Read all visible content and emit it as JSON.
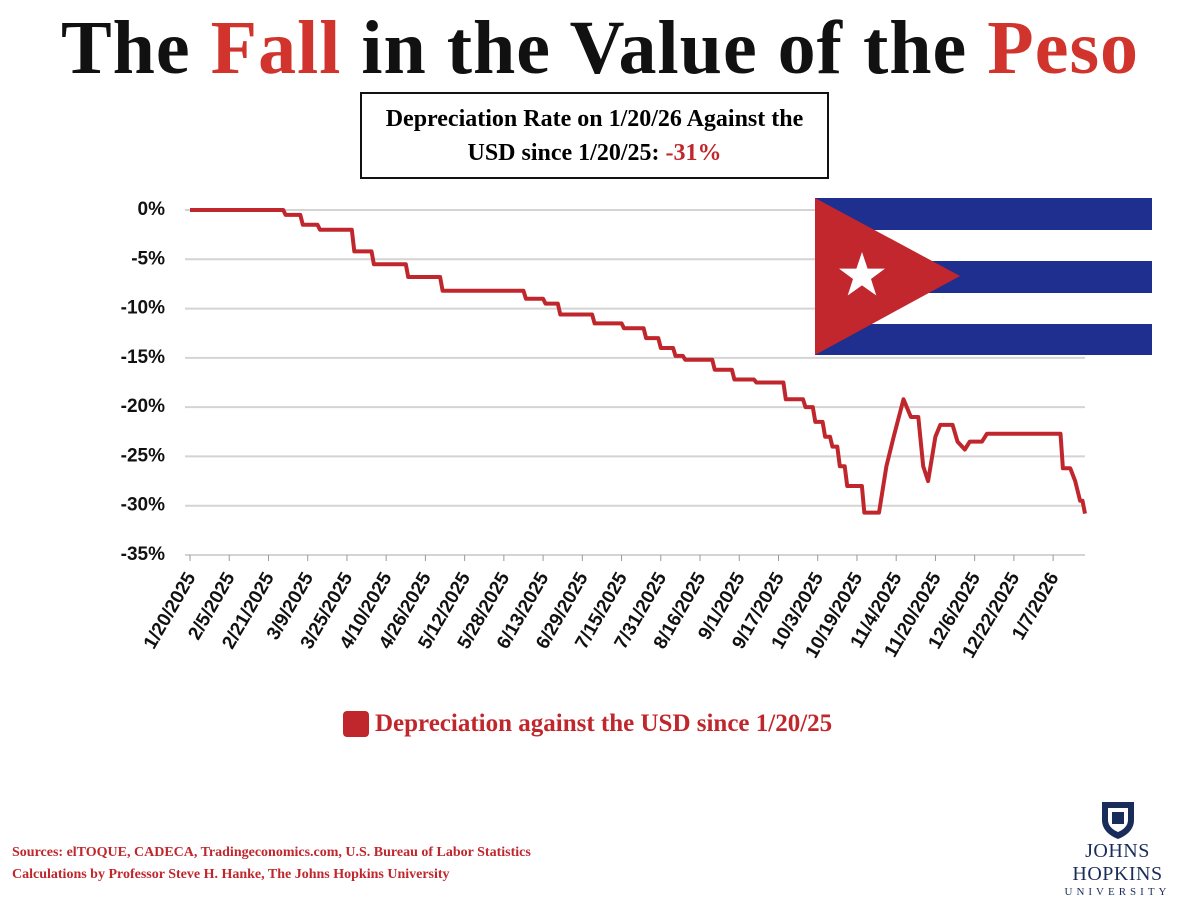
{
  "chart_data": {
    "type": "line",
    "title": [
      "The",
      "Fall",
      "in the Value of the",
      "Peso"
    ],
    "title_colors": [
      "#111111",
      "#d0342c",
      "#111111",
      "#d0342c"
    ],
    "annotation": "Depreciation Rate on 1/20/26 Against the USD since 1/20/25:",
    "annotation_value": "-31%",
    "x": [
      "1/20/2025",
      "2/27/2025",
      "2/28/2025",
      "3/6/2025",
      "3/7/2025",
      "3/13/2025",
      "3/14/2025",
      "3/27/2025",
      "3/28/2025",
      "4/4/2025",
      "4/5/2025",
      "4/18/2025",
      "4/19/2025",
      "5/2/2025",
      "5/3/2025",
      "6/5/2025",
      "6/6/2025",
      "6/13/2025",
      "6/14/2025",
      "6/19/2025",
      "6/20/2025",
      "7/3/2025",
      "7/4/2025",
      "7/15/2025",
      "7/16/2025",
      "7/24/2025",
      "7/25/2025",
      "7/30/2025",
      "7/31/2025",
      "8/5/2025",
      "8/6/2025",
      "8/9/2025",
      "8/10/2025",
      "8/21/2025",
      "8/22/2025",
      "8/29/2025",
      "8/30/2025",
      "9/7/2025",
      "9/8/2025",
      "9/19/2025",
      "9/20/2025",
      "9/27/2025",
      "9/28/2025",
      "10/1/2025",
      "10/2/2025",
      "10/5/2025",
      "10/6/2025",
      "10/8/2025",
      "10/9/2025",
      "10/11/2025",
      "10/12/2025",
      "10/14/2025",
      "10/15/2025",
      "10/21/2025",
      "10/22/2025",
      "10/28/2025",
      "10/31/2025",
      "11/3/2025",
      "11/7/2025",
      "11/10/2025",
      "11/13/2025",
      "11/15/2025",
      "11/17/2025",
      "11/20/2025",
      "11/22/2025",
      "11/27/2025",
      "11/29/2025",
      "12/2/2025",
      "12/4/2025",
      "12/9/2025",
      "12/11/2025",
      "1/10/2026",
      "1/11/2026",
      "1/14/2026",
      "1/16/2026",
      "1/18/2026",
      "1/19/2026",
      "1/20/2026"
    ],
    "series": [
      {
        "name": "Depreciation against the USD since 1/20/25",
        "color": "#c0272d",
        "values": [
          0,
          0,
          -0.5,
          -0.5,
          -1.5,
          -1.5,
          -2,
          -2,
          -4.2,
          -4.2,
          -5.5,
          -5.5,
          -6.8,
          -6.8,
          -8.2,
          -8.2,
          -9,
          -9,
          -9.5,
          -9.5,
          -10.6,
          -10.6,
          -11.5,
          -11.5,
          -12,
          -12,
          -13,
          -13,
          -14,
          -14,
          -14.8,
          -14.8,
          -15.2,
          -15.2,
          -16.2,
          -16.2,
          -17.2,
          -17.2,
          -17.5,
          -17.5,
          -19.2,
          -19.2,
          -20,
          -20,
          -21.5,
          -21.5,
          -23,
          -23,
          -24,
          -24,
          -26,
          -26,
          -28,
          -28,
          -30.7,
          -30.7,
          -26,
          -23,
          -19.2,
          -21,
          -21,
          -26,
          -27.5,
          -23,
          -21.8,
          -21.8,
          -23.5,
          -24.3,
          -23.5,
          -23.5,
          -22.7,
          -22.7,
          -26.2,
          -26.2,
          -27.5,
          -29.5,
          -29.5,
          -30.8
        ]
      }
    ],
    "xlim": [
      "1/20/2025",
      "1/20/2026"
    ],
    "xticks": [
      "1/20/2025",
      "2/5/2025",
      "2/21/2025",
      "3/9/2025",
      "3/25/2025",
      "4/10/2025",
      "4/26/2025",
      "5/12/2025",
      "5/28/2025",
      "6/13/2025",
      "6/29/2025",
      "7/15/2025",
      "7/31/2025",
      "8/16/2025",
      "9/1/2025",
      "9/17/2025",
      "10/3/2025",
      "10/19/2025",
      "11/4/2025",
      "11/20/2025",
      "12/6/2025",
      "12/22/2025",
      "1/7/2026"
    ],
    "ylim": [
      -35,
      0
    ],
    "yticks": [
      {
        "value": 0,
        "label": "0%"
      },
      {
        "value": -5,
        "label": "-5%"
      },
      {
        "value": -10,
        "label": "-10%"
      },
      {
        "value": -15,
        "label": "-15%"
      },
      {
        "value": -20,
        "label": "-20%"
      },
      {
        "value": -25,
        "label": "-25%"
      },
      {
        "value": -30,
        "label": "-30%"
      },
      {
        "value": -35,
        "label": "-35%"
      }
    ],
    "grid": true,
    "sources": [
      "Sources: elTOQUE, CADECA, Tradingeconomics.com, U.S. Bureau of Labor Statistics",
      "Calculations by Professor Steve H. Hanke, The Johns Hopkins University"
    ],
    "logo": [
      "JOHNS HOPKINS",
      "UNIVERSITY"
    ]
  }
}
